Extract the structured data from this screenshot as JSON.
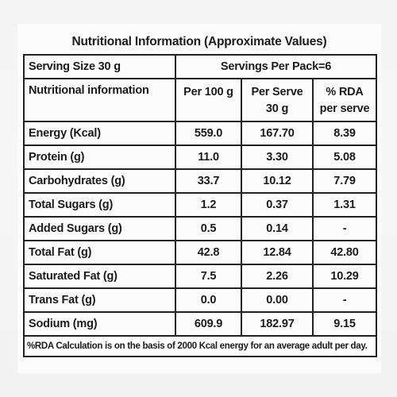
{
  "title": "Nutritional Information (Approximate Values)",
  "serving": {
    "size": "Serving Size 30 g",
    "per_pack": "Servings Per Pack=6"
  },
  "header": {
    "nutrient": "Nutritional information",
    "per100_line1": "Per 100 g",
    "per_serve_line1": "Per Serve",
    "per_serve_line2": "30 g",
    "rda_line1": "% RDA",
    "rda_line2": "per serve"
  },
  "rows": [
    {
      "nutrient": "Energy (Kcal)",
      "per100": "559.0",
      "per_serve": "167.70",
      "rda": "8.39"
    },
    {
      "nutrient": "Protein (g)",
      "per100": "11.0",
      "per_serve": "3.30",
      "rda": "5.08"
    },
    {
      "nutrient": "Carbohydrates (g)",
      "per100": "33.7",
      "per_serve": "10.12",
      "rda": "7.79"
    },
    {
      "nutrient": "Total Sugars (g)",
      "per100": "1.2",
      "per_serve": "0.37",
      "rda": "1.31"
    },
    {
      "nutrient": "Added Sugars (g)",
      "per100": "0.5",
      "per_serve": "0.14",
      "rda": "-"
    },
    {
      "nutrient": "Total Fat (g)",
      "per100": "42.8",
      "per_serve": "12.84",
      "rda": "42.80"
    },
    {
      "nutrient": "Saturated Fat (g)",
      "per100": "7.5",
      "per_serve": "2.26",
      "rda": "10.29"
    },
    {
      "nutrient": "Trans Fat (g)",
      "per100": "0.0",
      "per_serve": "0.00",
      "rda": "-"
    },
    {
      "nutrient": "Sodium (mg)",
      "per100": "609.9",
      "per_serve": "182.97",
      "rda": "9.15"
    }
  ],
  "footnote": "%RDA Calculation is on the basis of 2000 Kcal energy for an average adult per day."
}
